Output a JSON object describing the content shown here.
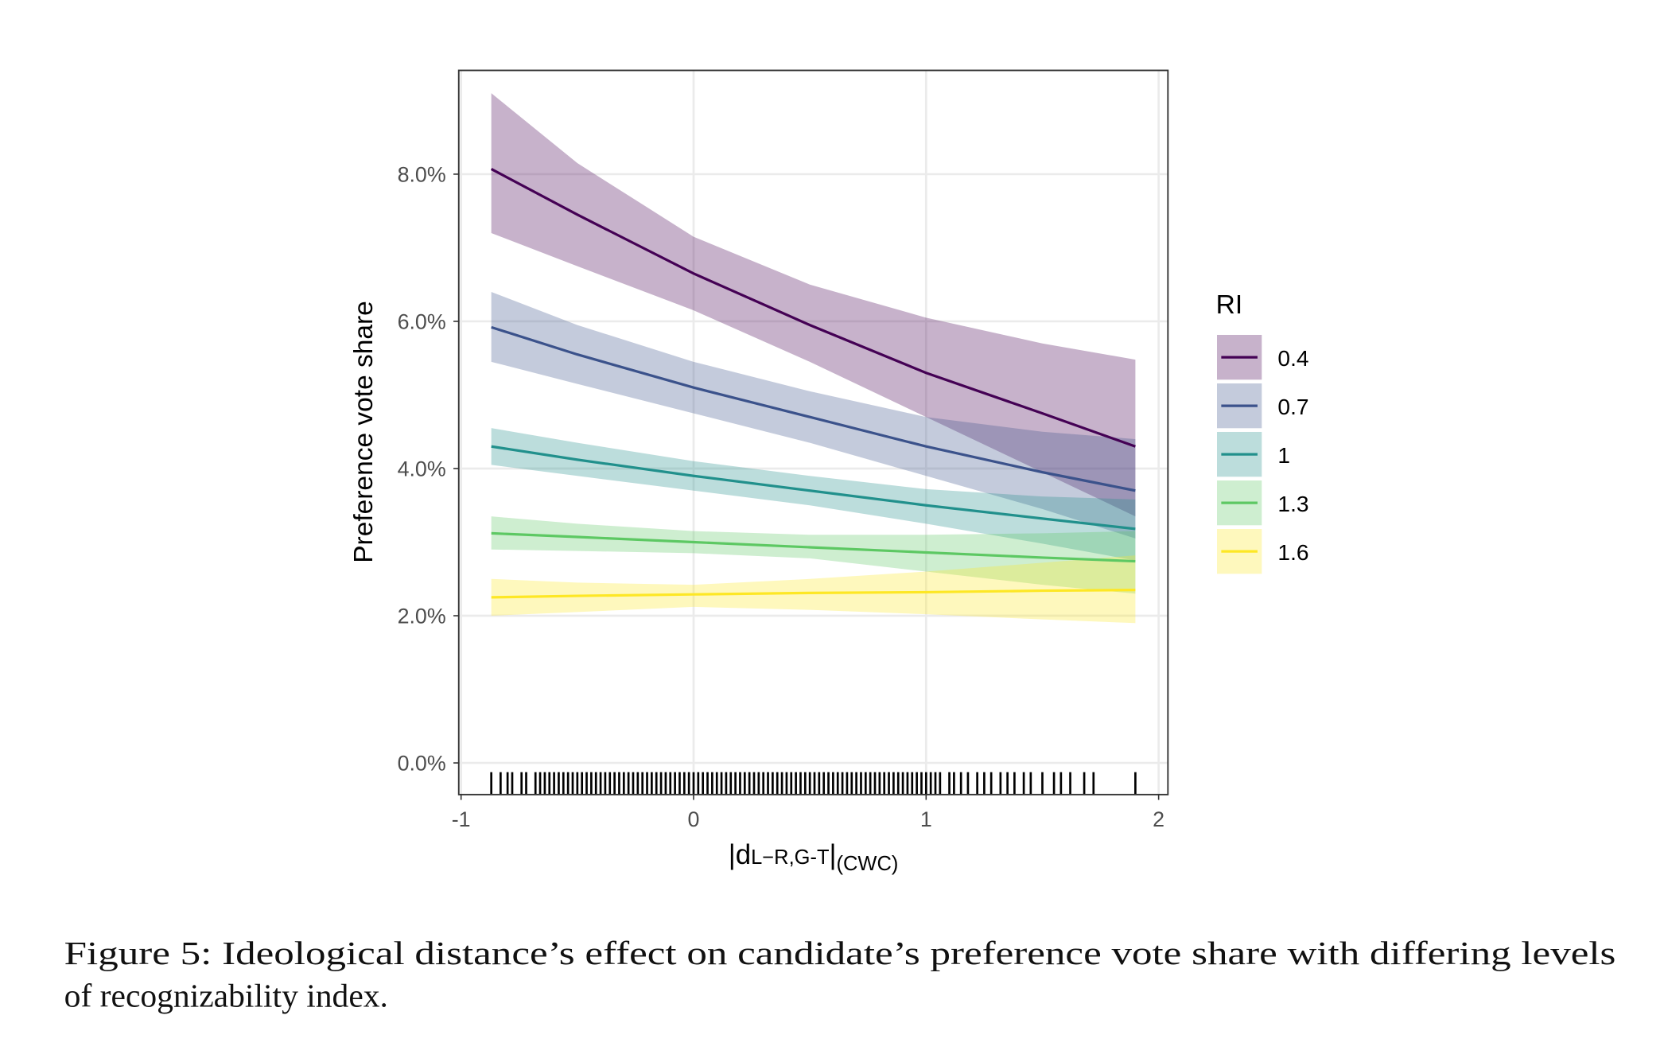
{
  "chart_data": {
    "type": "line",
    "x_label": [
      "|d",
      "L−R,G-T",
      "|",
      "(CWC)"
    ],
    "y_label": "Preference vote share",
    "legend_title": "RI",
    "legend": "right",
    "grid": true,
    "x": [
      -0.87,
      -0.5,
      0,
      0.5,
      1,
      1.5,
      1.9
    ],
    "xlim": [
      -1.01,
      2.04
    ],
    "xticks": [
      -1,
      0,
      1,
      2
    ],
    "ylim": [
      -0.43,
      9.41
    ],
    "yticks": [
      {
        "value": 0,
        "label": "0.0%"
      },
      {
        "value": 2,
        "label": "2.0%"
      },
      {
        "value": 4,
        "label": "4.0%"
      },
      {
        "value": 6,
        "label": "6.0%"
      },
      {
        "value": 8,
        "label": "8.0%"
      }
    ],
    "series": [
      {
        "name": "0.4",
        "color": "#440154",
        "values": [
          8.07,
          7.45,
          6.65,
          5.95,
          5.3,
          4.75,
          4.3
        ],
        "lower": [
          7.2,
          6.75,
          6.15,
          5.45,
          4.7,
          3.95,
          3.35
        ],
        "upper": [
          9.1,
          8.15,
          7.15,
          6.5,
          6.05,
          5.7,
          5.48
        ]
      },
      {
        "name": "0.7",
        "color": "#3b528b",
        "values": [
          5.92,
          5.55,
          5.1,
          4.7,
          4.3,
          3.95,
          3.7
        ],
        "lower": [
          5.45,
          5.15,
          4.75,
          4.35,
          3.9,
          3.45,
          3.05
        ],
        "upper": [
          6.4,
          5.95,
          5.45,
          5.05,
          4.7,
          4.5,
          4.4
        ]
      },
      {
        "name": "1",
        "color": "#21908c",
        "values": [
          4.3,
          4.12,
          3.9,
          3.7,
          3.5,
          3.32,
          3.18
        ],
        "lower": [
          4.05,
          3.9,
          3.7,
          3.5,
          3.25,
          2.98,
          2.75
        ],
        "upper": [
          4.55,
          4.35,
          4.1,
          3.9,
          3.72,
          3.62,
          3.58
        ]
      },
      {
        "name": "1.3",
        "color": "#5dc863",
        "values": [
          3.12,
          3.07,
          3.0,
          2.93,
          2.86,
          2.79,
          2.74
        ],
        "lower": [
          2.9,
          2.88,
          2.85,
          2.78,
          2.6,
          2.42,
          2.3
        ],
        "upper": [
          3.35,
          3.25,
          3.15,
          3.1,
          3.1,
          3.12,
          3.15
        ]
      },
      {
        "name": "1.6",
        "color": "#fde725",
        "values": [
          2.25,
          2.27,
          2.29,
          2.31,
          2.32,
          2.34,
          2.35
        ],
        "lower": [
          2.0,
          2.05,
          2.12,
          2.08,
          2.02,
          1.95,
          1.9
        ],
        "upper": [
          2.5,
          2.45,
          2.42,
          2.5,
          2.6,
          2.72,
          2.82
        ]
      }
    ],
    "rug": [
      -0.87,
      -0.83,
      -0.8,
      -0.78,
      -0.74,
      -0.72,
      -0.68,
      -0.66,
      -0.64,
      -0.62,
      -0.6,
      -0.58,
      -0.56,
      -0.54,
      -0.52,
      -0.5,
      -0.48,
      -0.46,
      -0.44,
      -0.42,
      -0.4,
      -0.38,
      -0.36,
      -0.34,
      -0.32,
      -0.3,
      -0.28,
      -0.26,
      -0.24,
      -0.22,
      -0.2,
      -0.18,
      -0.16,
      -0.14,
      -0.12,
      -0.1,
      -0.08,
      -0.06,
      -0.04,
      -0.02,
      0,
      0.02,
      0.04,
      0.06,
      0.08,
      0.1,
      0.12,
      0.14,
      0.16,
      0.18,
      0.2,
      0.22,
      0.24,
      0.26,
      0.28,
      0.3,
      0.32,
      0.34,
      0.36,
      0.38,
      0.4,
      0.42,
      0.44,
      0.46,
      0.48,
      0.5,
      0.52,
      0.54,
      0.56,
      0.58,
      0.6,
      0.62,
      0.64,
      0.66,
      0.68,
      0.7,
      0.72,
      0.74,
      0.76,
      0.78,
      0.8,
      0.82,
      0.84,
      0.86,
      0.88,
      0.9,
      0.92,
      0.94,
      0.96,
      0.98,
      1.0,
      1.02,
      1.04,
      1.06,
      1.1,
      1.12,
      1.15,
      1.18,
      1.22,
      1.25,
      1.28,
      1.32,
      1.35,
      1.38,
      1.42,
      1.45,
      1.5,
      1.55,
      1.58,
      1.62,
      1.68,
      1.72,
      1.9
    ]
  },
  "caption": [
    "Figure 5: Ideological distance’s effect on candidate’s preference vote share with differing levels",
    "of recognizability index."
  ]
}
